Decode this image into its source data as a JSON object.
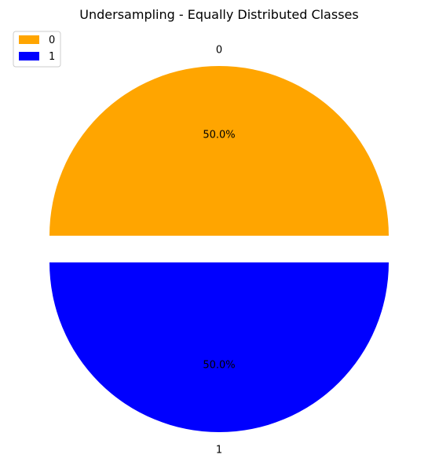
{
  "chart_data": {
    "type": "pie",
    "title": "Undersampling - Equally Distributed Classes",
    "slices": [
      {
        "label": "0",
        "value": 50.0,
        "pct_label": "50.0%",
        "color": "#FFA500",
        "exploded": true
      },
      {
        "label": "1",
        "value": 50.0,
        "pct_label": "50.0%",
        "color": "#0000FF",
        "exploded": true
      }
    ],
    "legend": {
      "placement": "top-left",
      "entries": [
        {
          "label": "0",
          "color": "#FFA500"
        },
        {
          "label": "1",
          "color": "#0000FF"
        }
      ]
    }
  }
}
